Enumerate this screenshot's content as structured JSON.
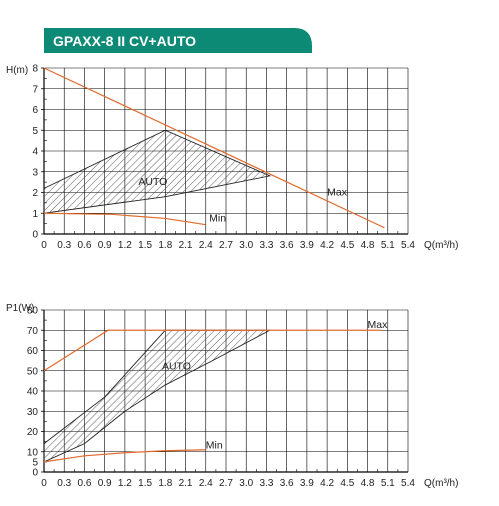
{
  "header": {
    "title": "GPAXX-8 II CV+AUTO",
    "bg_color": "#0d8a76",
    "text_color": "#ffffff"
  },
  "colors": {
    "curve": "#e26a2c",
    "grid": "#000000",
    "hatch": "#333333"
  },
  "chart_data": [
    {
      "type": "line",
      "id": "head",
      "ylabel": "H(m)",
      "xlabel": "Q(m³/h)",
      "xlim": [
        0,
        5.4
      ],
      "ylim": [
        0,
        8
      ],
      "x_ticks": [
        0,
        0.3,
        0.6,
        0.9,
        1.2,
        1.5,
        1.8,
        2.1,
        2.4,
        2.7,
        3.0,
        3.3,
        3.6,
        3.9,
        4.2,
        4.5,
        4.8,
        5.1,
        5.4
      ],
      "x_tick_labels": [
        "0",
        "0.3",
        "0.6",
        "0.9",
        "1.2",
        "1.5",
        "1.8",
        "2.1",
        "2.4",
        "2.7",
        "3.0",
        "3.3",
        "3.6",
        "3.9",
        "4.2",
        "4.5",
        "4.8",
        "5.1",
        "5.4"
      ],
      "y_ticks": [
        0,
        1,
        2,
        3,
        4,
        5,
        6,
        7,
        8
      ],
      "y_tick_labels": [
        "0",
        "1",
        "2",
        "3",
        "4",
        "5",
        "6",
        "7",
        "8"
      ],
      "grid": true,
      "series": [
        {
          "name": "Max",
          "x": [
            0,
            5.05
          ],
          "y": [
            8,
            0.3
          ]
        },
        {
          "name": "Min",
          "x": [
            0,
            1.0,
            1.8,
            2.4
          ],
          "y": [
            1.0,
            0.95,
            0.75,
            0.45
          ]
        }
      ],
      "auto_region": {
        "label": "AUTO",
        "outline": [
          [
            0,
            1.0
          ],
          [
            0,
            2.2
          ],
          [
            1.8,
            5.0
          ],
          [
            3.35,
            2.8
          ],
          [
            1.8,
            1.8
          ]
        ]
      },
      "annotations": [
        {
          "text": "Max",
          "x": 4.2,
          "y": 1.85
        },
        {
          "text": "Min",
          "x": 2.45,
          "y": 0.6
        },
        {
          "text": "AUTO",
          "x": 1.4,
          "y": 2.35
        }
      ]
    },
    {
      "type": "line",
      "id": "power",
      "ylabel": "P1(W)",
      "xlabel": "Q(m³/h)",
      "xlim": [
        0,
        5.4
      ],
      "ylim": [
        0,
        80
      ],
      "x_ticks": [
        0,
        0.3,
        0.6,
        0.9,
        1.2,
        1.5,
        1.8,
        2.1,
        2.4,
        2.7,
        3.0,
        3.3,
        3.6,
        3.9,
        4.2,
        4.5,
        4.8,
        5.1,
        5.4
      ],
      "x_tick_labels": [
        "0",
        "0.3",
        "0.6",
        "0.9",
        "1.2",
        "1.5",
        "1.8",
        "2.1",
        "2.4",
        "2.7",
        "3.0",
        "3.3",
        "3.6",
        "3.9",
        "4.2",
        "4.5",
        "4.8",
        "5.1",
        "5.4"
      ],
      "y_ticks": [
        0,
        10,
        20,
        30,
        40,
        50,
        60,
        70,
        80
      ],
      "y_tick_labels": [
        "0",
        "10",
        "20",
        "30",
        "40",
        "50",
        "60",
        "70",
        "80"
      ],
      "y_extra_ticks": [
        5
      ],
      "grid": true,
      "series": [
        {
          "name": "Max",
          "x": [
            0,
            0.95,
            5.0
          ],
          "y": [
            50,
            70,
            70
          ]
        },
        {
          "name": "Min",
          "x": [
            0,
            0.6,
            1.2,
            1.8,
            2.4
          ],
          "y": [
            5,
            8,
            9.5,
            10.5,
            11
          ]
        }
      ],
      "auto_region": {
        "label": "AUTO",
        "outline": [
          [
            0,
            14
          ],
          [
            0.9,
            37
          ],
          [
            1.8,
            70
          ],
          [
            3.35,
            70
          ],
          [
            2.5,
            55
          ],
          [
            1.8,
            43
          ],
          [
            1.2,
            30
          ],
          [
            0.6,
            14
          ],
          [
            0,
            5
          ]
        ]
      },
      "annotations": [
        {
          "text": "Max",
          "x": 4.8,
          "y": 71
        },
        {
          "text": "Min",
          "x": 2.4,
          "y": 11.5
        },
        {
          "text": "AUTO",
          "x": 1.75,
          "y": 50.5
        }
      ]
    }
  ]
}
